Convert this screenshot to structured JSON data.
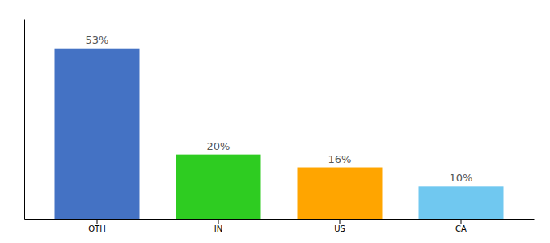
{
  "chart_data": {
    "type": "bar",
    "categories": [
      "OTH",
      "IN",
      "US",
      "CA"
    ],
    "values": [
      53,
      20,
      16,
      10
    ],
    "value_labels": [
      "53%",
      "20%",
      "16%",
      "10%"
    ],
    "colors": [
      "#4472C4",
      "#2ECC21",
      "#FFA500",
      "#70C8F0"
    ],
    "ylim": [
      0,
      62
    ],
    "data_labels": true,
    "tick_labels": "x"
  }
}
